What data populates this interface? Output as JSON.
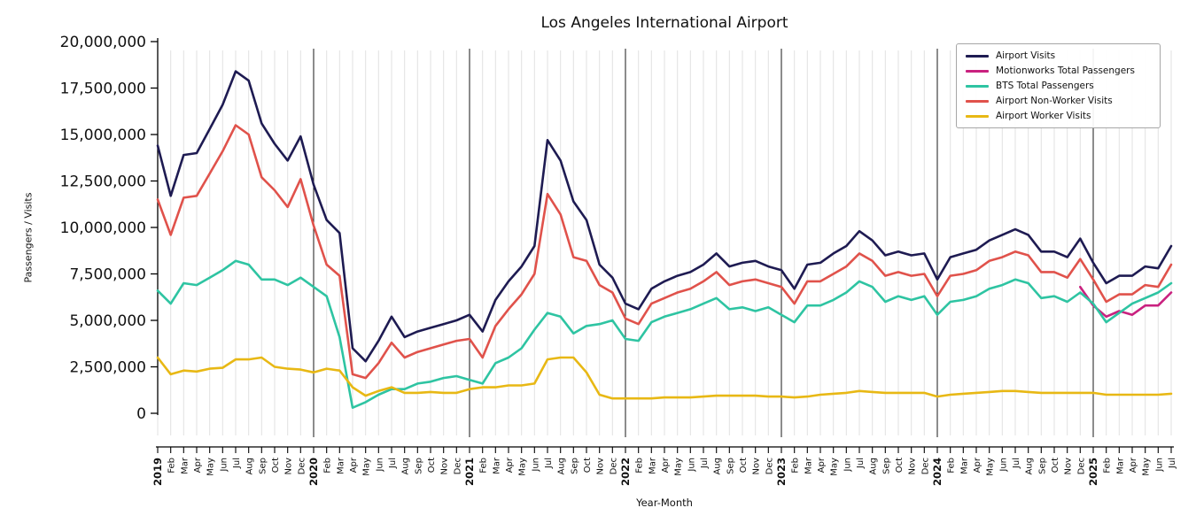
{
  "chart_data": {
    "type": "line",
    "title": "Los Angeles International Airport",
    "xlabel": "Year-Month",
    "ylabel": "Passengers / Visits",
    "ylim": [
      0,
      20000000
    ],
    "grid": "vertical-monthly-light-gray",
    "legend_position": "upper right",
    "yticks": [
      0,
      2500000,
      5000000,
      7500000,
      10000000,
      12500000,
      15000000,
      17500000,
      20000000
    ],
    "ytick_labels": [
      "0",
      "2,500,000",
      "5,000,000",
      "7,500,000",
      "10,000,000",
      "12,500,000",
      "15,000,000",
      "17,500,000",
      "20,000,000"
    ],
    "x_labels": [
      "2019",
      "Feb",
      "Mar",
      "Apr",
      "May",
      "Jun",
      "Jul",
      "Aug",
      "Sep",
      "Oct",
      "Nov",
      "Dec",
      "2020",
      "Feb",
      "Mar",
      "Apr",
      "May",
      "Jun",
      "Jul",
      "Aug",
      "Sep",
      "Oct",
      "Nov",
      "Dec",
      "2021",
      "Feb",
      "Mar",
      "Apr",
      "May",
      "Jun",
      "Jul",
      "Aug",
      "Sep",
      "Oct",
      "Nov",
      "Dec",
      "2022",
      "Feb",
      "Mar",
      "Apr",
      "May",
      "Jun",
      "Jul",
      "Aug",
      "Sep",
      "Oct",
      "Nov",
      "Dec",
      "2023",
      "Feb",
      "Mar",
      "Apr",
      "May",
      "Jun",
      "Jul",
      "Aug",
      "Sep",
      "Oct",
      "Nov",
      "Dec",
      "2024",
      "Feb",
      "Mar",
      "Apr",
      "May",
      "Jun",
      "Jul",
      "Aug",
      "Sep",
      "Oct",
      "Nov",
      "Dec",
      "2025",
      "Feb",
      "Mar",
      "Apr",
      "May",
      "Jun",
      "Jul"
    ],
    "year_boundaries": [
      12,
      24,
      36,
      48,
      60,
      72
    ],
    "series": [
      {
        "name": "Airport Visits",
        "color": "#1e1b52",
        "values": [
          14400000,
          11700000,
          13900000,
          14000000,
          15300000,
          16600000,
          18400000,
          17900000,
          15600000,
          14500000,
          13600000,
          14900000,
          12300000,
          10400000,
          9700000,
          3500000,
          2800000,
          3900000,
          5200000,
          4100000,
          4400000,
          4600000,
          4800000,
          5000000,
          5300000,
          4400000,
          6100000,
          7100000,
          7900000,
          9000000,
          14700000,
          13600000,
          11400000,
          10400000,
          8000000,
          7300000,
          5900000,
          5600000,
          6700000,
          7100000,
          7400000,
          7600000,
          8000000,
          8600000,
          7900000,
          8100000,
          8200000,
          7900000,
          7700000,
          6700000,
          8000000,
          8100000,
          8600000,
          9000000,
          9800000,
          9300000,
          8500000,
          8700000,
          8500000,
          8600000,
          7200000,
          8400000,
          8600000,
          8800000,
          9300000,
          9600000,
          9900000,
          9600000,
          8700000,
          8700000,
          8400000,
          9400000,
          8100000,
          7000000,
          7400000,
          7400000,
          7900000,
          7800000,
          9000000
        ]
      },
      {
        "name": "Motionworks Total Passengers",
        "color": "#c9217f",
        "values": [
          null,
          null,
          null,
          null,
          null,
          null,
          null,
          null,
          null,
          null,
          null,
          null,
          null,
          null,
          null,
          null,
          null,
          null,
          null,
          null,
          null,
          null,
          null,
          null,
          null,
          null,
          null,
          null,
          null,
          null,
          null,
          null,
          null,
          null,
          null,
          null,
          null,
          null,
          null,
          null,
          null,
          null,
          null,
          null,
          null,
          null,
          null,
          null,
          null,
          null,
          null,
          null,
          null,
          null,
          null,
          null,
          null,
          null,
          null,
          null,
          null,
          null,
          null,
          null,
          null,
          null,
          null,
          null,
          null,
          null,
          null,
          6800000,
          5800000,
          5200000,
          5500000,
          5300000,
          5800000,
          5800000,
          6500000
        ]
      },
      {
        "name": "BTS Total Passengers",
        "color": "#2ec4a2",
        "values": [
          6600000,
          5900000,
          7000000,
          6900000,
          7300000,
          7700000,
          8200000,
          8000000,
          7200000,
          7200000,
          6900000,
          7300000,
          6800000,
          6300000,
          4100000,
          300000,
          600000,
          1000000,
          1300000,
          1300000,
          1600000,
          1700000,
          1900000,
          2000000,
          1800000,
          1600000,
          2700000,
          3000000,
          3500000,
          4500000,
          5400000,
          5200000,
          4300000,
          4700000,
          4800000,
          5000000,
          4000000,
          3900000,
          4900000,
          5200000,
          5400000,
          5600000,
          5900000,
          6200000,
          5600000,
          5700000,
          5500000,
          5700000,
          5300000,
          4900000,
          5800000,
          5800000,
          6100000,
          6500000,
          7100000,
          6800000,
          6000000,
          6300000,
          6100000,
          6300000,
          5300000,
          6000000,
          6100000,
          6300000,
          6700000,
          6900000,
          7200000,
          7000000,
          6200000,
          6300000,
          6000000,
          6500000,
          5900000,
          4900000,
          5400000,
          5900000,
          6200000,
          6500000,
          7000000
        ]
      },
      {
        "name": "Airport Non-Worker Visits",
        "color": "#e0524b",
        "values": [
          11500000,
          9600000,
          11600000,
          11700000,
          12900000,
          14100000,
          15500000,
          15000000,
          12700000,
          12000000,
          11100000,
          12600000,
          10100000,
          8000000,
          7400000,
          2100000,
          1900000,
          2700000,
          3800000,
          3000000,
          3300000,
          3500000,
          3700000,
          3900000,
          4000000,
          3000000,
          4700000,
          5600000,
          6400000,
          7500000,
          11800000,
          10700000,
          8400000,
          8200000,
          6900000,
          6500000,
          5100000,
          4800000,
          5900000,
          6200000,
          6500000,
          6700000,
          7100000,
          7600000,
          6900000,
          7100000,
          7200000,
          7000000,
          6800000,
          5900000,
          7100000,
          7100000,
          7500000,
          7900000,
          8600000,
          8200000,
          7400000,
          7600000,
          7400000,
          7500000,
          6300000,
          7400000,
          7500000,
          7700000,
          8200000,
          8400000,
          8700000,
          8500000,
          7600000,
          7600000,
          7300000,
          8300000,
          7200000,
          6000000,
          6400000,
          6400000,
          6900000,
          6800000,
          8000000
        ]
      },
      {
        "name": "Airport Worker Visits",
        "color": "#e8b814",
        "values": [
          3000000,
          2100000,
          2300000,
          2250000,
          2400000,
          2450000,
          2900000,
          2900000,
          3000000,
          2500000,
          2400000,
          2350000,
          2200000,
          2400000,
          2300000,
          1400000,
          950000,
          1200000,
          1400000,
          1100000,
          1100000,
          1150000,
          1100000,
          1100000,
          1300000,
          1400000,
          1400000,
          1500000,
          1500000,
          1600000,
          2900000,
          3000000,
          3000000,
          2200000,
          1000000,
          800000,
          800000,
          800000,
          800000,
          850000,
          850000,
          850000,
          900000,
          950000,
          950000,
          950000,
          950000,
          900000,
          900000,
          850000,
          900000,
          1000000,
          1050000,
          1100000,
          1200000,
          1150000,
          1100000,
          1100000,
          1100000,
          1100000,
          900000,
          1000000,
          1050000,
          1100000,
          1150000,
          1200000,
          1200000,
          1150000,
          1100000,
          1100000,
          1100000,
          1100000,
          1100000,
          1000000,
          1000000,
          1000000,
          1000000,
          1000000,
          1050000
        ]
      }
    ]
  }
}
